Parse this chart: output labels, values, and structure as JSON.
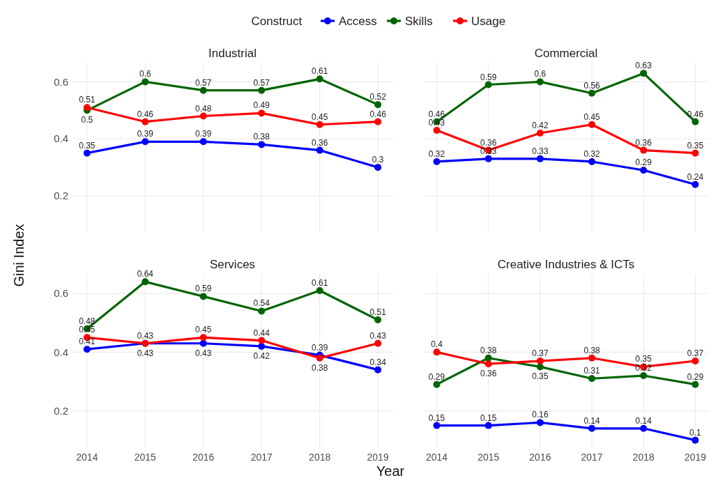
{
  "chart_data": [
    {
      "type": "line",
      "title": "Industrial",
      "ylabel": "Gini Index",
      "legend_title": "Construct",
      "legend": "top",
      "x": [
        2014,
        2015,
        2016,
        2017,
        2018,
        2019
      ],
      "xlim": [
        2013.75,
        2019.25
      ],
      "xticks": [
        2014,
        2015,
        2016,
        2017,
        2018,
        2019
      ],
      "ylim": [
        0.073,
        0.667
      ],
      "yticks": [
        0.2,
        0.4,
        0.6
      ],
      "grid": true,
      "marker": "circle",
      "data_labels": true,
      "tick_labels": "y",
      "series": [
        {
          "name": "Access",
          "color": "#0000ff",
          "values": [
            0.35,
            0.39,
            0.39,
            0.38,
            0.36,
            0.3
          ]
        },
        {
          "name": "Skills",
          "color": "#006400",
          "values": [
            0.5,
            0.6,
            0.57,
            0.57,
            0.61,
            0.52
          ]
        },
        {
          "name": "Usage",
          "color": "#ff0000",
          "values": [
            0.51,
            0.46,
            0.48,
            0.49,
            0.45,
            0.46
          ]
        }
      ]
    },
    {
      "type": "line",
      "title": "Commercial",
      "x": [
        2014,
        2015,
        2016,
        2017,
        2018,
        2019
      ],
      "xlim": [
        2013.75,
        2019.25
      ],
      "xticks": [
        2014,
        2015,
        2016,
        2017,
        2018,
        2019
      ],
      "ylim": [
        0.073,
        0.667
      ],
      "yticks": [
        0.2,
        0.4,
        0.6
      ],
      "grid": true,
      "marker": "circle",
      "data_labels": true,
      "tick_labels": false,
      "series": [
        {
          "color": "#0000ff",
          "values": [
            0.32,
            0.33,
            0.33,
            0.32,
            0.29,
            0.24
          ]
        },
        {
          "color": "#006400",
          "values": [
            0.46,
            0.59,
            0.6,
            0.56,
            0.63,
            0.46
          ]
        },
        {
          "color": "#ff0000",
          "values": [
            0.43,
            0.36,
            0.42,
            0.45,
            0.36,
            0.35
          ]
        }
      ]
    },
    {
      "type": "line",
      "title": "Services",
      "xlabel": "Year",
      "x": [
        2014,
        2015,
        2016,
        2017,
        2018,
        2019
      ],
      "xlim": [
        2013.75,
        2019.25
      ],
      "xticks": [
        2014,
        2015,
        2016,
        2017,
        2018,
        2019
      ],
      "ylim": [
        0.073,
        0.667
      ],
      "yticks": [
        0.2,
        0.4,
        0.6
      ],
      "grid": true,
      "marker": "circle",
      "data_labels": true,
      "series": [
        {
          "color": "#0000ff",
          "values": [
            0.41,
            0.43,
            0.43,
            0.42,
            0.39,
            0.34
          ]
        },
        {
          "color": "#006400",
          "values": [
            0.48,
            0.64,
            0.59,
            0.54,
            0.61,
            0.51
          ]
        },
        {
          "color": "#ff0000",
          "values": [
            0.45,
            0.43,
            0.45,
            0.44,
            0.38,
            0.43
          ]
        }
      ]
    },
    {
      "type": "line",
      "title": "Creative Industries & ICTs",
      "x": [
        2014,
        2015,
        2016,
        2017,
        2018,
        2019
      ],
      "xlim": [
        2013.75,
        2019.25
      ],
      "xticks": [
        2014,
        2015,
        2016,
        2017,
        2018,
        2019
      ],
      "ylim": [
        0.073,
        0.667
      ],
      "yticks": [
        0.2,
        0.4,
        0.6
      ],
      "grid": true,
      "marker": "circle",
      "data_labels": true,
      "tick_labels": "x",
      "series": [
        {
          "color": "#0000ff",
          "values": [
            0.15,
            0.15,
            0.16,
            0.14,
            0.14,
            0.1
          ]
        },
        {
          "color": "#006400",
          "values": [
            0.29,
            0.38,
            0.35,
            0.31,
            0.32,
            0.29
          ]
        },
        {
          "color": "#ff0000",
          "values": [
            0.4,
            0.36,
            0.37,
            0.38,
            0.35,
            0.37
          ]
        }
      ]
    }
  ]
}
